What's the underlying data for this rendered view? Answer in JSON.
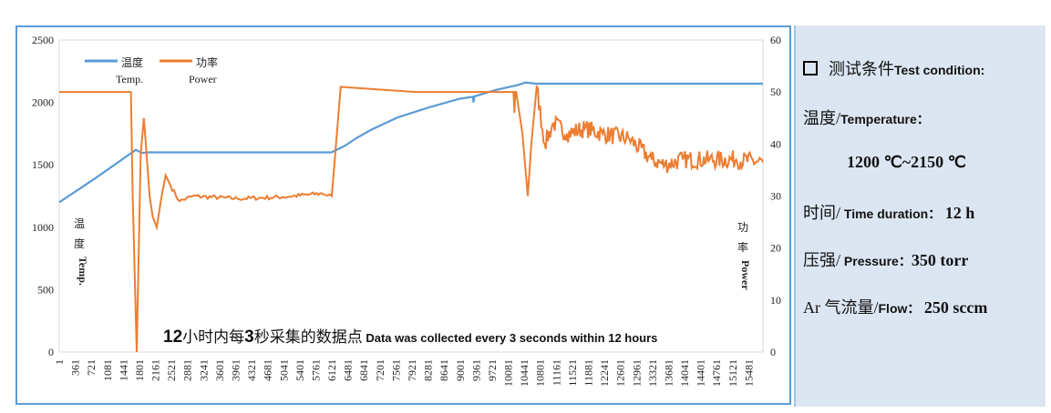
{
  "chart_data": {
    "type": "line",
    "x_tick_labels": [
      "1",
      "361",
      "721",
      "1081",
      "1441",
      "1801",
      "2161",
      "2521",
      "2881",
      "3241",
      "3601",
      "3961",
      "4321",
      "4681",
      "5041",
      "5401",
      "5761",
      "6121",
      "6481",
      "6841",
      "7201",
      "7561",
      "7921",
      "8281",
      "8641",
      "9001",
      "9361",
      "9721",
      "10081",
      "10441",
      "10801",
      "11161",
      "11521",
      "11881",
      "12241",
      "12601",
      "12961",
      "13321",
      "13681",
      "14041",
      "14401",
      "14761",
      "15121",
      "15481"
    ],
    "xlim": [
      1,
      15800
    ],
    "y_left": {
      "label_cn": "温度",
      "label_en": "Temp.",
      "ylim": [
        0,
        2500
      ],
      "ticks": [
        0,
        500,
        1000,
        1500,
        2000,
        2500
      ]
    },
    "y_right": {
      "label_cn": "功率",
      "label_en": "Power",
      "ylim": [
        0,
        60
      ],
      "ticks": [
        0,
        10,
        20,
        30,
        40,
        50,
        60
      ]
    },
    "grid": false,
    "legend_position": "top-left",
    "annotation": {
      "cn_1": "12",
      "cn_2": "小时内每",
      "cn_3": "3",
      "cn_4": "秒采集的数据点",
      "en": "Data was collected every 3 seconds within 12 hours"
    },
    "series": [
      {
        "name": "温度",
        "name_en": "Temp.",
        "axis": "left",
        "color": "#5b9bd5",
        "x": [
          1,
          800,
          1400,
          1720,
          1860,
          2000,
          3000,
          6110,
          6400,
          6700,
          7000,
          7600,
          8300,
          9000,
          9290,
          9300,
          9320,
          9800,
          10300,
          10470,
          10700,
          15800
        ],
        "y": [
          1200,
          1390,
          1540,
          1620,
          1595,
          1600,
          1600,
          1600,
          1650,
          1720,
          1780,
          1880,
          1960,
          2030,
          2045,
          2000,
          2048,
          2100,
          2140,
          2160,
          2150,
          2150
        ]
      },
      {
        "name": "功率",
        "name_en": "Power",
        "axis": "right",
        "color": "#ed7d31",
        "x": [
          1,
          1610,
          1650,
          1740,
          1830,
          1900,
          1945,
          2030,
          2100,
          2190,
          2300,
          2390,
          2500,
          2700,
          3000,
          4000,
          5000,
          5900,
          6120,
          6320,
          8000,
          10200,
          10220,
          10240,
          10260,
          10400,
          10520,
          10600,
          10720,
          10900,
          11100,
          11400,
          11800,
          12200,
          12800,
          13300,
          13600,
          14000,
          14600,
          15200,
          15800
        ],
        "y": [
          50,
          50,
          30,
          0,
          38,
          45,
          40,
          30,
          26,
          24,
          30,
          34,
          32,
          29,
          30,
          29.5,
          29.8,
          30.5,
          30,
          51,
          50,
          50,
          46,
          50,
          50,
          42,
          30,
          40,
          51,
          40,
          44,
          42,
          43,
          42,
          41,
          37,
          36,
          37,
          37,
          37,
          36.5
        ]
      }
    ]
  },
  "panel": {
    "title_cn": "测试条件",
    "title_en": "Test condition:",
    "temp_cn": "温度/",
    "temp_en": "Temperature：",
    "temp_value": "1200 ℃~2150 ℃",
    "time_cn": "时间/",
    "time_en": " Time duration：",
    "time_value": " 12 h",
    "pressure_cn": "压强/",
    "pressure_en": " Pressure：",
    "pressure_value": "350 torr",
    "flow_cn": "Ar 气流量/",
    "flow_en": "Flow：",
    "flow_value": " 250 sccm"
  }
}
